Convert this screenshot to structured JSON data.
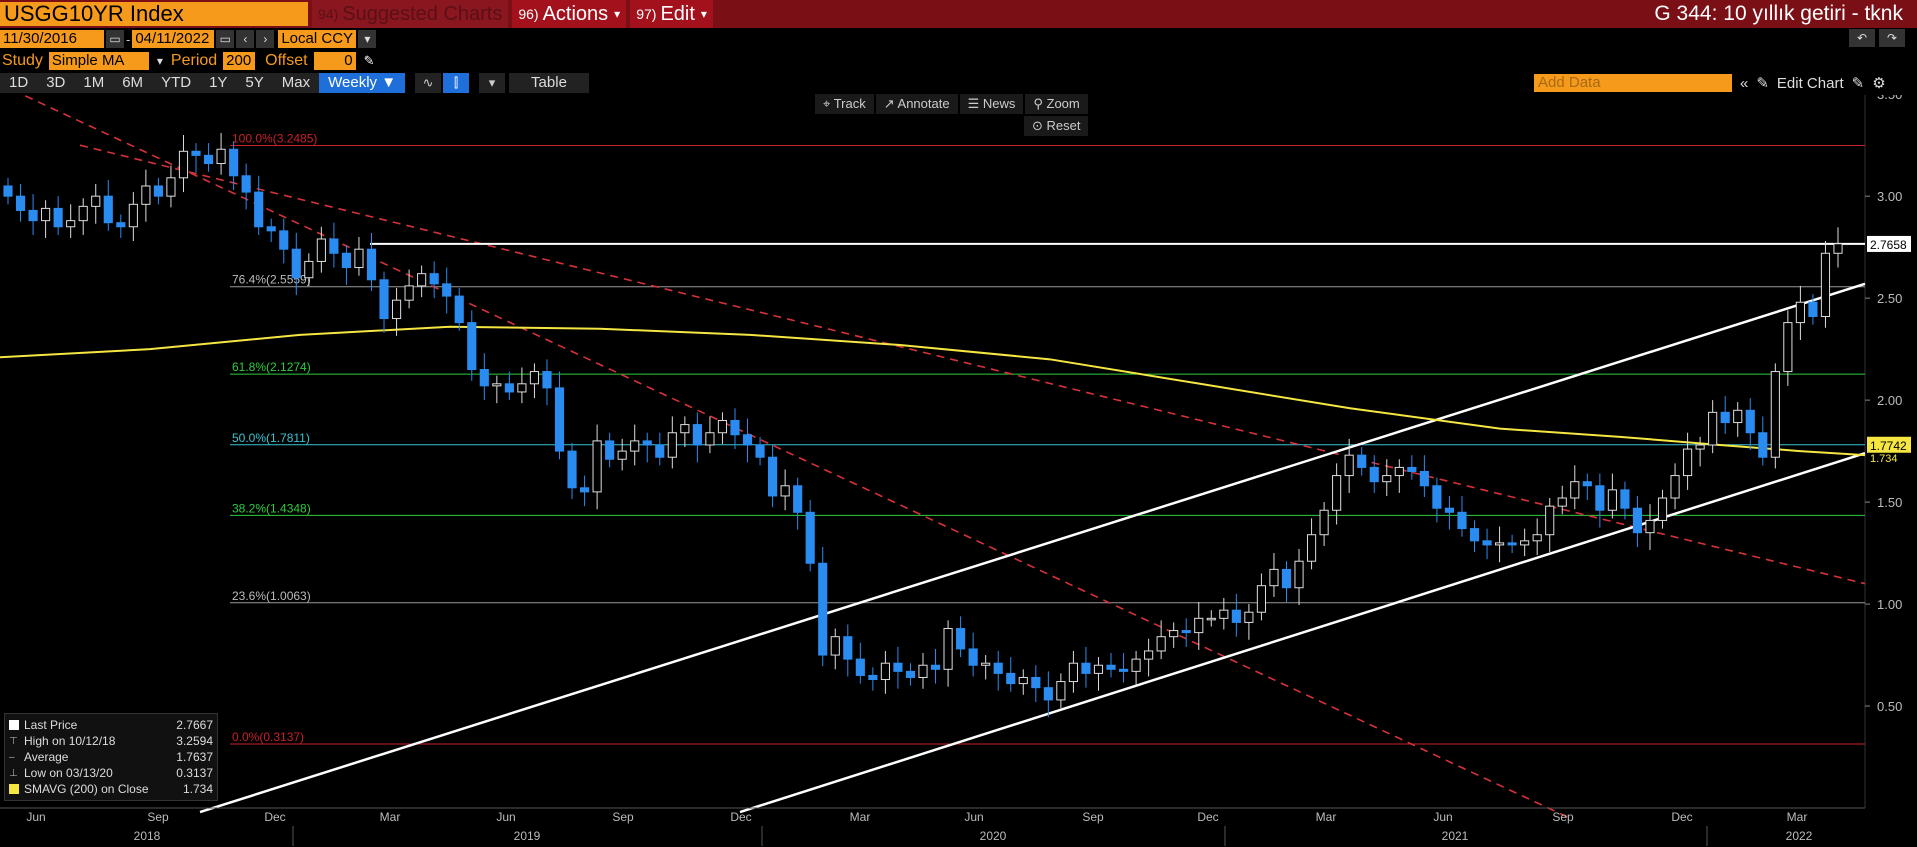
{
  "titlebar": {
    "ticker": "USGG10YR Index",
    "suggested": {
      "num": "94)",
      "label": "Suggested Charts"
    },
    "actions": {
      "num": "96)",
      "label": "Actions"
    },
    "edit": {
      "num": "97)",
      "label": "Edit"
    },
    "right_title": "G 344: 10 yıllık getiri - tknk"
  },
  "daterange": {
    "start": "11/30/2016",
    "sep": "-",
    "end": "04/11/2022",
    "currency": "Local CCY"
  },
  "study": {
    "label": "Study",
    "type": "Simple MA",
    "period_label": "Period",
    "period": "200",
    "offset_label": "Offset",
    "offset": "0"
  },
  "periods": [
    "1D",
    "3D",
    "1M",
    "6M",
    "YTD",
    "1Y",
    "5Y",
    "Max"
  ],
  "frequency": "Weekly",
  "table_label": "Table",
  "add_data_placeholder": "Add Data",
  "edit_chart_label": "Edit Chart",
  "chart_tools": [
    "Track",
    "Annotate",
    "News",
    "Zoom"
  ],
  "reset_label": "Reset",
  "legend": {
    "rows": [
      {
        "key": "Last Price",
        "value": "2.7667",
        "color": "#ffffff"
      },
      {
        "key": "High on 10/12/18",
        "value": "3.2594",
        "color": ""
      },
      {
        "key": "Average",
        "value": "1.7637",
        "color": ""
      },
      {
        "key": "Low on 03/13/20",
        "value": "0.3137",
        "color": ""
      },
      {
        "key": "SMAVG (200)  on Close",
        "value": "1.734",
        "color": "#f5e642"
      }
    ]
  },
  "chart_data": {
    "type": "candlestick",
    "title": "",
    "ylim": [
      0.0,
      3.55
    ],
    "yticks": [
      "3.50",
      "3.00",
      "2.50",
      "2.00",
      "1.50",
      "1.00",
      "0.50"
    ],
    "ytick_values": [
      3.5,
      3.0,
      2.5,
      2.0,
      1.5,
      1.0,
      0.5
    ],
    "month_labels": [
      "Jun",
      "Sep",
      "Dec",
      "Mar",
      "Jun",
      "Sep",
      "Dec",
      "Mar",
      "Jun",
      "Sep",
      "Dec",
      "Mar",
      "Jun",
      "Sep",
      "Dec",
      "Mar"
    ],
    "year_labels": [
      "2018",
      "2019",
      "2020",
      "2021",
      "2022"
    ],
    "last_price_label": "2.7658",
    "sma_label": "1.7742",
    "sma_label2": "1.734",
    "fib_levels": [
      {
        "label": "100.0%(3.2485)",
        "value": 3.2485,
        "color": "#c8202a"
      },
      {
        "label": "76.4%(2.5559)",
        "value": 2.5559,
        "color": "#999999"
      },
      {
        "label": "61.8%(2.1274)",
        "value": 2.1274,
        "color": "#2ecc40"
      },
      {
        "label": "50.0%(1.7811)",
        "value": 1.7811,
        "color": "#39c4d4"
      },
      {
        "label": "38.2%(1.4348)",
        "value": 1.4348,
        "color": "#2ecc40"
      },
      {
        "label": "23.6%(1.0063)",
        "value": 1.0063,
        "color": "#999999"
      },
      {
        "label": "0.0%(0.3137)",
        "value": 0.3137,
        "color": "#c8202a"
      }
    ],
    "horizontal_line": 2.7658,
    "closes": [
      3.0,
      2.93,
      2.88,
      2.94,
      2.85,
      2.88,
      2.95,
      3.0,
      2.87,
      2.85,
      2.96,
      3.05,
      3.0,
      3.09,
      3.22,
      3.2,
      3.16,
      3.23,
      3.1,
      3.02,
      2.85,
      2.83,
      2.74,
      2.6,
      2.68,
      2.79,
      2.72,
      2.65,
      2.74,
      2.59,
      2.4,
      2.49,
      2.56,
      2.62,
      2.57,
      2.51,
      2.38,
      2.15,
      2.07,
      2.08,
      2.04,
      2.08,
      2.14,
      2.06,
      1.75,
      1.57,
      1.55,
      1.8,
      1.71,
      1.75,
      1.8,
      1.78,
      1.72,
      1.84,
      1.88,
      1.78,
      1.84,
      1.9,
      1.83,
      1.78,
      1.72,
      1.53,
      1.58,
      1.45,
      1.2,
      0.75,
      0.84,
      0.73,
      0.65,
      0.63,
      0.71,
      0.67,
      0.64,
      0.7,
      0.68,
      0.88,
      0.78,
      0.7,
      0.71,
      0.66,
      0.61,
      0.64,
      0.59,
      0.53,
      0.62,
      0.71,
      0.66,
      0.7,
      0.68,
      0.67,
      0.73,
      0.77,
      0.84,
      0.87,
      0.86,
      0.93,
      0.93,
      0.97,
      0.91,
      0.96,
      1.09,
      1.17,
      1.08,
      1.21,
      1.34,
      1.46,
      1.63,
      1.73,
      1.67,
      1.6,
      1.63,
      1.67,
      1.65,
      1.58,
      1.47,
      1.45,
      1.37,
      1.31,
      1.29,
      1.3,
      1.29,
      1.31,
      1.34,
      1.48,
      1.52,
      1.6,
      1.58,
      1.46,
      1.56,
      1.47,
      1.35,
      1.41,
      1.52,
      1.63,
      1.76,
      1.78,
      1.94,
      1.89,
      1.95,
      1.84,
      1.72,
      2.14,
      2.38,
      2.48,
      2.41,
      2.72,
      2.7667
    ]
  }
}
